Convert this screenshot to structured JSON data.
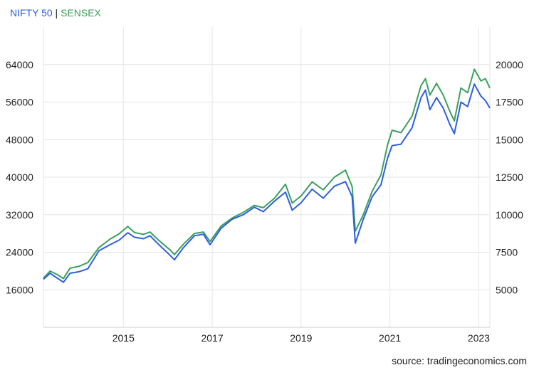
{
  "legend": {
    "series1": "NIFTY 50",
    "separator": "|",
    "series2": "SENSEX"
  },
  "source": "source: tradingeconomics.com",
  "colors": {
    "nifty": "#2f5fe0",
    "sensex": "#3c9f5e",
    "grid": "#e6e6e6"
  },
  "chart_data": {
    "type": "line",
    "title": "",
    "xlabel": "",
    "ylabel": "",
    "grid": true,
    "legend_position": "top-left",
    "x_ticks": [
      2015,
      2017,
      2019,
      2021,
      2023
    ],
    "xlim": [
      2013.2,
      2023.25
    ],
    "left_axis": {
      "series": "SENSEX",
      "ticks": [
        16000,
        24000,
        32000,
        40000,
        48000,
        56000,
        64000
      ],
      "ylim": [
        8000,
        72000
      ]
    },
    "right_axis": {
      "series": "NIFTY 50",
      "ticks": [
        5000,
        7500,
        10000,
        12500,
        15000,
        17500,
        20000
      ],
      "ylim": [
        2500,
        22500
      ]
    },
    "series": [
      {
        "name": "NIFTY 50",
        "axis": "right",
        "points": [
          [
            2013.2,
            5700
          ],
          [
            2013.35,
            6100
          ],
          [
            2013.5,
            5800
          ],
          [
            2013.65,
            5500
          ],
          [
            2013.8,
            6100
          ],
          [
            2014.0,
            6200
          ],
          [
            2014.2,
            6400
          ],
          [
            2014.45,
            7600
          ],
          [
            2014.7,
            8000
          ],
          [
            2014.9,
            8300
          ],
          [
            2015.1,
            8800
          ],
          [
            2015.25,
            8500
          ],
          [
            2015.45,
            8400
          ],
          [
            2015.6,
            8600
          ],
          [
            2015.8,
            8000
          ],
          [
            2016.05,
            7300
          ],
          [
            2016.15,
            7000
          ],
          [
            2016.35,
            7800
          ],
          [
            2016.6,
            8600
          ],
          [
            2016.8,
            8700
          ],
          [
            2016.95,
            8000
          ],
          [
            2017.2,
            9100
          ],
          [
            2017.45,
            9700
          ],
          [
            2017.7,
            10000
          ],
          [
            2017.95,
            10500
          ],
          [
            2018.15,
            10200
          ],
          [
            2018.4,
            10900
          ],
          [
            2018.65,
            11500
          ],
          [
            2018.8,
            10300
          ],
          [
            2019.0,
            10800
          ],
          [
            2019.25,
            11700
          ],
          [
            2019.5,
            11100
          ],
          [
            2019.75,
            11900
          ],
          [
            2020.0,
            12200
          ],
          [
            2020.15,
            11200
          ],
          [
            2020.22,
            8100
          ],
          [
            2020.4,
            9700
          ],
          [
            2020.6,
            11200
          ],
          [
            2020.8,
            12000
          ],
          [
            2020.95,
            13800
          ],
          [
            2021.05,
            14600
          ],
          [
            2021.25,
            14700
          ],
          [
            2021.5,
            15800
          ],
          [
            2021.7,
            17800
          ],
          [
            2021.8,
            18300
          ],
          [
            2021.9,
            17000
          ],
          [
            2022.05,
            17800
          ],
          [
            2022.2,
            17100
          ],
          [
            2022.35,
            16000
          ],
          [
            2022.45,
            15400
          ],
          [
            2022.6,
            17500
          ],
          [
            2022.75,
            17200
          ],
          [
            2022.9,
            18700
          ],
          [
            2023.05,
            17900
          ],
          [
            2023.15,
            17600
          ],
          [
            2023.25,
            17100
          ]
        ]
      },
      {
        "name": "SENSEX",
        "axis": "left",
        "points": [
          [
            2013.2,
            18500
          ],
          [
            2013.35,
            20000
          ],
          [
            2013.5,
            19300
          ],
          [
            2013.65,
            18400
          ],
          [
            2013.8,
            20600
          ],
          [
            2014.0,
            21000
          ],
          [
            2014.2,
            21800
          ],
          [
            2014.45,
            25000
          ],
          [
            2014.7,
            26800
          ],
          [
            2014.9,
            27900
          ],
          [
            2015.1,
            29500
          ],
          [
            2015.25,
            28200
          ],
          [
            2015.45,
            27800
          ],
          [
            2015.6,
            28300
          ],
          [
            2015.8,
            26500
          ],
          [
            2016.05,
            24500
          ],
          [
            2016.15,
            23500
          ],
          [
            2016.35,
            25700
          ],
          [
            2016.6,
            28000
          ],
          [
            2016.8,
            28300
          ],
          [
            2016.95,
            26300
          ],
          [
            2017.2,
            29600
          ],
          [
            2017.45,
            31300
          ],
          [
            2017.7,
            32500
          ],
          [
            2017.95,
            34000
          ],
          [
            2018.15,
            33500
          ],
          [
            2018.4,
            35500
          ],
          [
            2018.65,
            38500
          ],
          [
            2018.8,
            34500
          ],
          [
            2019.0,
            36000
          ],
          [
            2019.25,
            39000
          ],
          [
            2019.5,
            37300
          ],
          [
            2019.75,
            40000
          ],
          [
            2020.0,
            41500
          ],
          [
            2020.15,
            38000
          ],
          [
            2020.22,
            28500
          ],
          [
            2020.4,
            32000
          ],
          [
            2020.6,
            37000
          ],
          [
            2020.8,
            40500
          ],
          [
            2020.95,
            47000
          ],
          [
            2021.05,
            50000
          ],
          [
            2021.25,
            49500
          ],
          [
            2021.5,
            53000
          ],
          [
            2021.7,
            59500
          ],
          [
            2021.8,
            61000
          ],
          [
            2021.9,
            57500
          ],
          [
            2022.05,
            60000
          ],
          [
            2022.2,
            57500
          ],
          [
            2022.35,
            54000
          ],
          [
            2022.45,
            52000
          ],
          [
            2022.6,
            59000
          ],
          [
            2022.75,
            58000
          ],
          [
            2022.9,
            63000
          ],
          [
            2023.05,
            60500
          ],
          [
            2023.15,
            61000
          ],
          [
            2023.25,
            59000
          ]
        ]
      }
    ]
  }
}
